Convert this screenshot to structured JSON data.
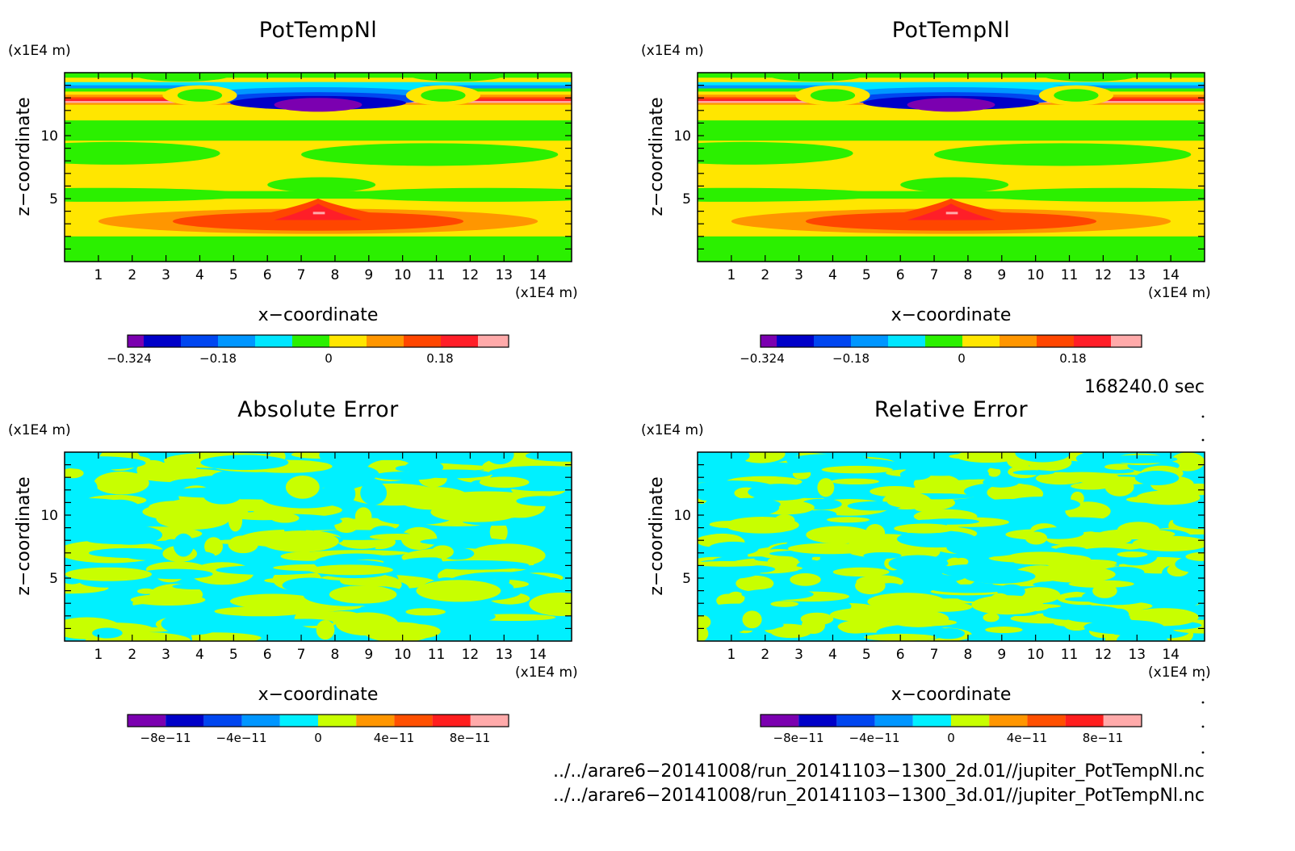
{
  "panels": [
    {
      "title": "PotTempNl",
      "z_unit": "(x1E4 m)",
      "x_unit": "(x1E4 m)",
      "xlabel": "x−coordinate",
      "ylabel": "z−coordinate",
      "x_ticks": [
        "1",
        "2",
        "3",
        "4",
        "5",
        "6",
        "7",
        "8",
        "9",
        "10",
        "11",
        "12",
        "13",
        "14"
      ],
      "z_ticks": [
        "5",
        "10"
      ],
      "colorbar": {
        "labels": [
          "−0.324",
          "−0.18",
          "0",
          "0.18"
        ]
      }
    },
    {
      "title": "PotTempNl",
      "z_unit": "(x1E4 m)",
      "x_unit": "(x1E4 m)",
      "xlabel": "x−coordinate",
      "ylabel": "z−coordinate",
      "x_ticks": [
        "1",
        "2",
        "3",
        "4",
        "5",
        "6",
        "7",
        "8",
        "9",
        "10",
        "11",
        "12",
        "13",
        "14"
      ],
      "z_ticks": [
        "5",
        "10"
      ],
      "colorbar": {
        "labels": [
          "−0.324",
          "−0.18",
          "0",
          "0.18"
        ]
      }
    },
    {
      "title": "Absolute Error",
      "z_unit": "(x1E4 m)",
      "x_unit": "(x1E4 m)",
      "xlabel": "x−coordinate",
      "ylabel": "z−coordinate",
      "x_ticks": [
        "1",
        "2",
        "3",
        "4",
        "5",
        "6",
        "7",
        "8",
        "9",
        "10",
        "11",
        "12",
        "13",
        "14"
      ],
      "z_ticks": [
        "5",
        "10"
      ],
      "colorbar": {
        "labels": [
          "−8e−11",
          "−4e−11",
          "0",
          "4e−11",
          "8e−11"
        ]
      }
    },
    {
      "title": "Relative Error",
      "z_unit": "(x1E4 m)",
      "x_unit": "(x1E4 m)",
      "xlabel": "x−coordinate",
      "ylabel": "z−coordinate",
      "x_ticks": [
        "1",
        "2",
        "3",
        "4",
        "5",
        "6",
        "7",
        "8",
        "9",
        "10",
        "11",
        "12",
        "13",
        "14"
      ],
      "z_ticks": [
        "5",
        "10"
      ],
      "colorbar": {
        "labels": [
          "−8e−11",
          "−4e−11",
          "0",
          "4e−11",
          "8e−11"
        ]
      }
    }
  ],
  "time_label": "168240.0 sec",
  "files": [
    "../../arare6−20141008/run_20141103−1300_2d.01//jupiter_PotTempNl.nc",
    "../../arare6−20141008/run_20141103−1300_3d.01//jupiter_PotTempNl.nc"
  ],
  "colors": {
    "potemp_scale": [
      "#7b00b0",
      "#0000c8",
      "#0046f0",
      "#0096ff",
      "#00e6ff",
      "#2bf000",
      "#ffe600",
      "#ff9600",
      "#ff4600",
      "#ff1e28",
      "#ffaaaa"
    ],
    "error_scale": [
      "#7b00b0",
      "#0000c8",
      "#0046f0",
      "#0096ff",
      "#00f0ff",
      "#c8ff00",
      "#ff9600",
      "#ff5000",
      "#ff1e1e",
      "#ffaaaa"
    ]
  },
  "chart_data": [
    {
      "type": "heatmap",
      "title": "PotTempNl",
      "xlabel": "x−coordinate",
      "ylabel": "z−coordinate",
      "xlim": [
        0,
        15
      ],
      "ylim": [
        0,
        15
      ],
      "x_unit": "x1E4 m",
      "z_unit": "x1E4 m",
      "levels": [
        -0.324,
        -0.18,
        0,
        0.18
      ],
      "features": [
        {
          "z_range": [
            0,
            2
          ],
          "value_sign": "positive-small",
          "color": "green"
        },
        {
          "z_range": [
            2,
            5
          ],
          "value": 0.22,
          "note": "warm anomaly centred near x=7.6"
        },
        {
          "z_range": [
            5,
            10
          ],
          "value_sign": "alternating green/yellow bands"
        },
        {
          "z_range": [
            12.5,
            13.8
          ],
          "value": -0.3,
          "note": "strong cold/warm oscillating layer"
        }
      ]
    },
    {
      "type": "heatmap",
      "title": "PotTempNl",
      "xlabel": "x−coordinate",
      "ylabel": "z−coordinate",
      "xlim": [
        0,
        15
      ],
      "ylim": [
        0,
        15
      ],
      "levels": [
        -0.324,
        -0.18,
        0,
        0.18
      ]
    },
    {
      "type": "heatmap",
      "title": "Absolute Error",
      "xlabel": "x−coordinate",
      "ylabel": "z−coordinate",
      "xlim": [
        0,
        15
      ],
      "ylim": [
        0,
        15
      ],
      "levels": [
        -8e-11,
        -4e-11,
        0,
        4e-11,
        8e-11
      ],
      "values_present": "only bins just below and just above 0 (cyan / yellow-green)"
    },
    {
      "type": "heatmap",
      "title": "Relative Error",
      "xlabel": "x−coordinate",
      "ylabel": "z−coordinate",
      "xlim": [
        0,
        15
      ],
      "ylim": [
        0,
        15
      ],
      "levels": [
        -8e-11,
        -4e-11,
        0,
        4e-11,
        8e-11
      ],
      "values_present": "only bins just below and just above 0 (cyan / yellow-green)"
    }
  ]
}
